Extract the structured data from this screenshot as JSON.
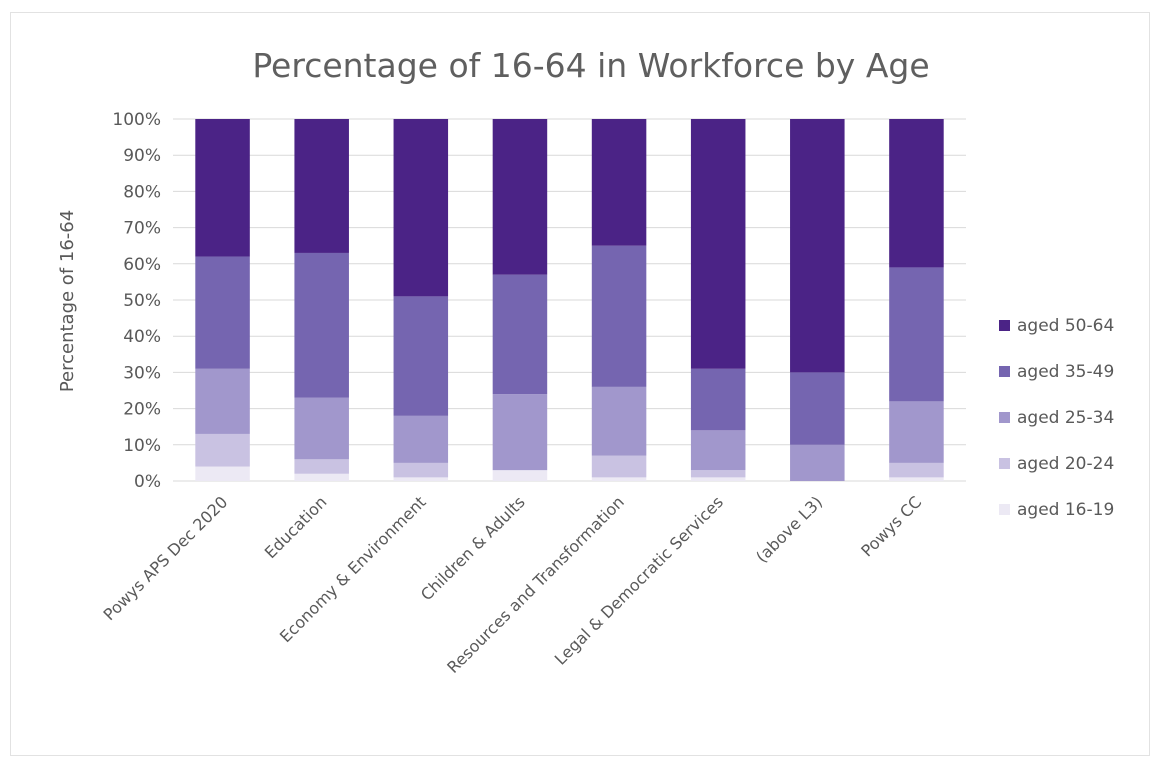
{
  "chart_data": {
    "type": "bar",
    "stacked": true,
    "title": "Percentage of 16-64 in Workforce by Age",
    "xlabel": "",
    "ylabel": "Percentage of 16-64",
    "ylim": [
      0,
      100
    ],
    "yticks": [
      "0%",
      "10%",
      "20%",
      "30%",
      "40%",
      "50%",
      "60%",
      "70%",
      "80%",
      "90%",
      "100%"
    ],
    "grid": true,
    "legend_position": "right",
    "categories": [
      "Powys APS Dec 2020",
      "Education",
      "Economy & Environment",
      "Children & Adults",
      "Resources and Transformation",
      "Legal & Democratic Services",
      "(above L3)",
      "Powys CC"
    ],
    "series": [
      {
        "name": "aged 16-19",
        "color": "#ece9f4",
        "values": [
          4,
          2,
          1,
          3,
          1,
          1,
          0,
          1
        ]
      },
      {
        "name": "aged 20-24",
        "color": "#c9c2e2",
        "values": [
          9,
          4,
          4,
          0,
          6,
          2,
          0,
          4
        ]
      },
      {
        "name": "aged 25-34",
        "color": "#a197cc",
        "values": [
          18,
          17,
          13,
          21,
          19,
          11,
          10,
          17
        ]
      },
      {
        "name": "aged 35-49",
        "color": "#7565b0",
        "values": [
          31,
          40,
          33,
          33,
          39,
          17,
          20,
          37
        ]
      },
      {
        "name": "aged 50-64",
        "color": "#4b2386",
        "values": [
          38,
          37,
          49,
          43,
          35,
          69,
          70,
          41
        ]
      }
    ]
  }
}
